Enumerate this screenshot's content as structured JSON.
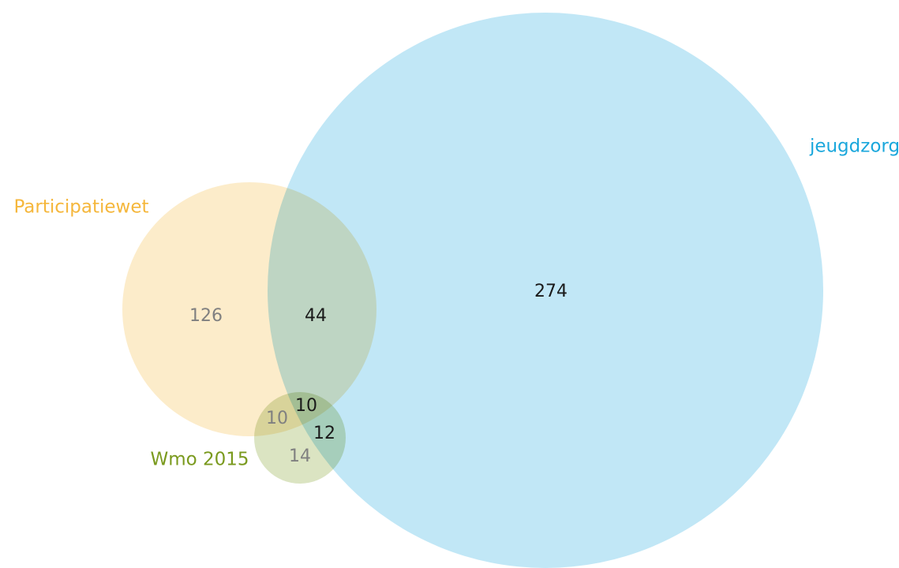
{
  "chart_data": {
    "type": "venn",
    "sets": [
      {
        "name": "Participatiewet",
        "color": "#f5b73c"
      },
      {
        "name": "jeugdzorg",
        "color": "#1aa7dc"
      },
      {
        "name": "Wmo 2015",
        "color": "#7a9a1e"
      }
    ],
    "regions": [
      126,
      44,
      274,
      10,
      10,
      12,
      14
    ]
  }
}
